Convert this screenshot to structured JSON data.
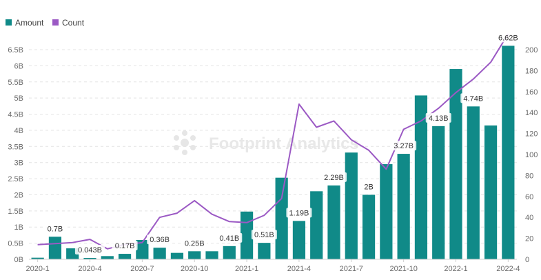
{
  "legend": [
    {
      "label": "Amount",
      "color": "#108a88"
    },
    {
      "label": "Count",
      "color": "#9b59c4"
    }
  ],
  "watermark": "Footprint Analytics",
  "chart_data": {
    "type": "bar",
    "categories": [
      "2020-1",
      "2020-2",
      "2020-3",
      "2020-4",
      "2020-5",
      "2020-6",
      "2020-7",
      "2020-8",
      "2020-9",
      "2020-10",
      "2020-11",
      "2020-12",
      "2021-1",
      "2021-2",
      "2021-3",
      "2021-4",
      "2021-5",
      "2021-6",
      "2021-7",
      "2021-8",
      "2021-9",
      "2021-10",
      "2021-11",
      "2021-12",
      "2022-1",
      "2022-2",
      "2022-3",
      "2022-4"
    ],
    "x_tick_labels": [
      "2020-1",
      "2020-4",
      "2020-7",
      "2020-10",
      "2021-1",
      "2021-4",
      "2021-7",
      "2021-10",
      "2022-1",
      "2022-4"
    ],
    "series": [
      {
        "name": "Amount",
        "kind": "bar",
        "axis": "left",
        "color": "#108a88",
        "values": [
          0.05,
          0.7,
          0.34,
          0.043,
          0.1,
          0.17,
          0.6,
          0.36,
          0.2,
          0.25,
          0.25,
          0.41,
          1.48,
          0.51,
          2.53,
          1.19,
          2.11,
          2.29,
          3.31,
          2.0,
          2.95,
          3.27,
          5.08,
          4.13,
          5.9,
          4.74,
          4.15,
          6.62
        ]
      },
      {
        "name": "Count",
        "kind": "line",
        "axis": "right",
        "color": "#9b59c4",
        "values": [
          14,
          15,
          16,
          19,
          10,
          14,
          16,
          40,
          44,
          56,
          43,
          36,
          35,
          42,
          58,
          148,
          126,
          132,
          114,
          104,
          86,
          124,
          132,
          144,
          159,
          172,
          188,
          215
        ]
      }
    ],
    "data_labels": [
      {
        "index": 1,
        "text": "0.7B"
      },
      {
        "index": 3,
        "text": "0.043B"
      },
      {
        "index": 5,
        "text": "0.17B"
      },
      {
        "index": 7,
        "text": "0.36B"
      },
      {
        "index": 9,
        "text": "0.25B"
      },
      {
        "index": 11,
        "text": "0.41B"
      },
      {
        "index": 13,
        "text": "0.51B"
      },
      {
        "index": 15,
        "text": "1.19B"
      },
      {
        "index": 17,
        "text": "2.29B"
      },
      {
        "index": 19,
        "text": "2B"
      },
      {
        "index": 21,
        "text": "3.27B"
      },
      {
        "index": 23,
        "text": "4.13B"
      },
      {
        "index": 25,
        "text": "4.74B"
      },
      {
        "index": 27,
        "text": "6.62B"
      }
    ],
    "y_left": {
      "ticks": [
        "0B",
        "0.5B",
        "1B",
        "1.5B",
        "2B",
        "2.5B",
        "3B",
        "3.5B",
        "4B",
        "4.5B",
        "5B",
        "5.5B",
        "6B",
        "6.5B"
      ],
      "ylim": [
        0,
        6.5
      ]
    },
    "y_right": {
      "ticks": [
        "0",
        "20",
        "40",
        "60",
        "80",
        "100",
        "120",
        "140",
        "160",
        "180",
        "200"
      ],
      "ylim": [
        0,
        200
      ]
    },
    "grid": "horizontal dashed",
    "legend_position": "top-left"
  }
}
